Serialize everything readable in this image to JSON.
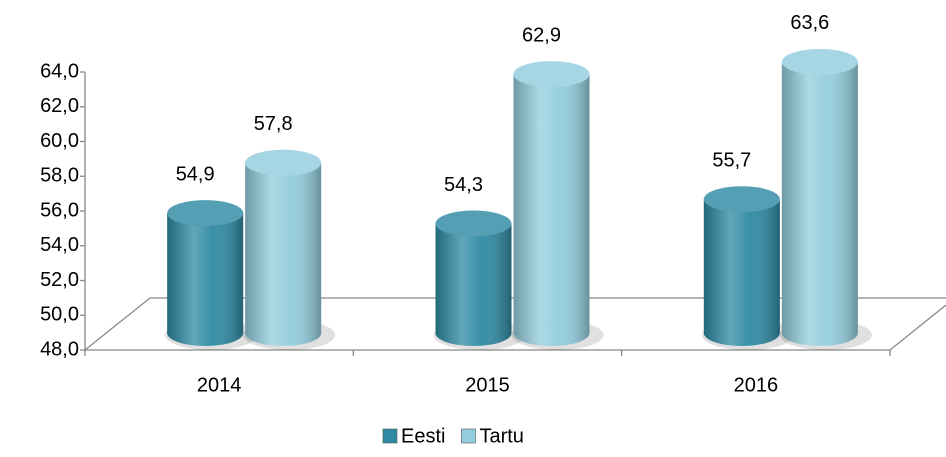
{
  "chart_data": {
    "type": "bar",
    "categories": [
      "2014",
      "2015",
      "2016"
    ],
    "series": [
      {
        "name": "Eesti",
        "color": "#2f8aa3",
        "values": [
          54.9,
          54.3,
          55.7
        ],
        "value_labels": [
          "54,9",
          "54,3",
          "55,7"
        ]
      },
      {
        "name": "Tartu",
        "color": "#93cddd",
        "values": [
          57.8,
          62.9,
          63.6
        ],
        "value_labels": [
          "57,8",
          "62,9",
          "63,6"
        ]
      }
    ],
    "ylim": [
      48,
      64
    ],
    "yticks": [
      {
        "value": 48,
        "label": "48,0"
      },
      {
        "value": 50,
        "label": "50,0"
      },
      {
        "value": 52,
        "label": "52,0"
      },
      {
        "value": 54,
        "label": "54,0"
      },
      {
        "value": 56,
        "label": "56,0"
      },
      {
        "value": 58,
        "label": "58,0"
      },
      {
        "value": 60,
        "label": "60,0"
      },
      {
        "value": 62,
        "label": "62,0"
      },
      {
        "value": 64,
        "label": "64,0"
      }
    ],
    "legend": "bottom"
  }
}
